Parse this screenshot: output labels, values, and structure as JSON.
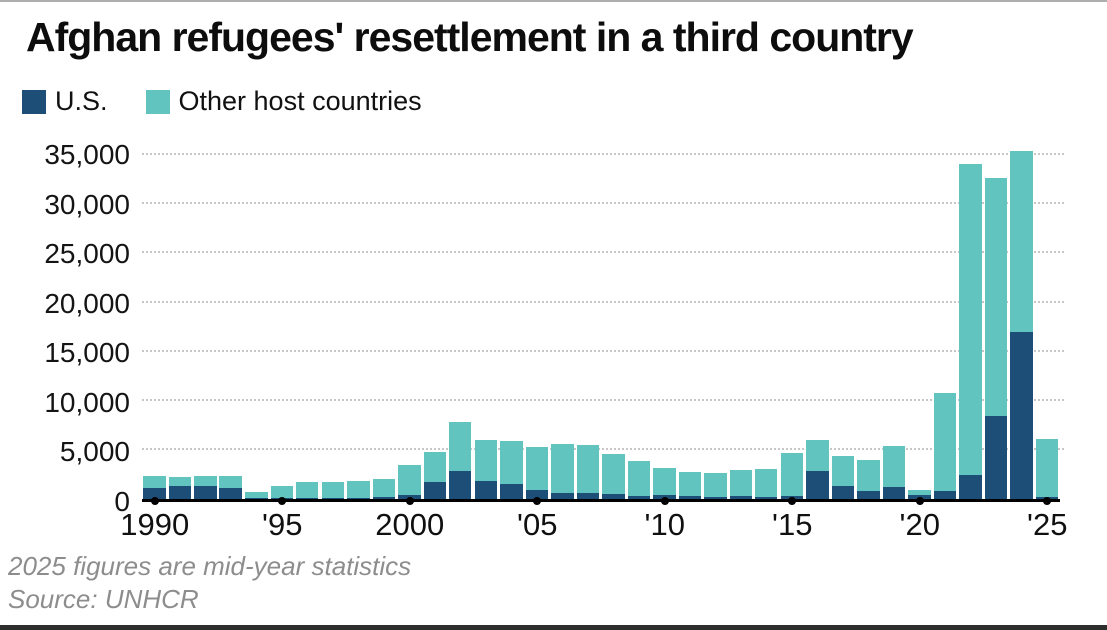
{
  "title": "Afghan refugees' resettlement in a third country",
  "legend": [
    {
      "label": "U.S.",
      "color": "#1c4e78"
    },
    {
      "label": "Other host countries",
      "color": "#62c4be"
    }
  ],
  "footnote": "2025 figures are mid-year statistics",
  "source": "Source: UNHCR",
  "chart_data": {
    "type": "bar",
    "stacked": true,
    "title": "Afghan refugees' resettlement in a third country",
    "xlabel": "",
    "ylabel": "",
    "ylim": [
      0,
      35000
    ],
    "grid": "dotted-horizontal",
    "legend_position": "top-left",
    "years": [
      1990,
      1991,
      1992,
      1993,
      1994,
      1995,
      1996,
      1997,
      1998,
      1999,
      2000,
      2001,
      2002,
      2003,
      2004,
      2005,
      2006,
      2007,
      2008,
      2009,
      2010,
      2011,
      2012,
      2013,
      2014,
      2015,
      2016,
      2017,
      2018,
      2019,
      2020,
      2021,
      2022,
      2023,
      2024,
      2025
    ],
    "series": [
      {
        "name": "U.S.",
        "color": "#1c4e78",
        "values": [
          1100,
          1300,
          1300,
          1100,
          150,
          100,
          100,
          150,
          100,
          200,
          400,
          1700,
          2900,
          1800,
          1500,
          900,
          650,
          600,
          500,
          350,
          400,
          350,
          250,
          300,
          250,
          350,
          2900,
          1300,
          800,
          1200,
          400,
          850,
          2400,
          8400,
          17000,
          200
        ]
      },
      {
        "name": "Other host countries",
        "color": "#62c4be",
        "values": [
          1200,
          900,
          1000,
          1200,
          550,
          1200,
          1600,
          1550,
          1700,
          1800,
          3100,
          3100,
          4900,
          4200,
          4400,
          4400,
          4950,
          4900,
          4100,
          3550,
          2800,
          2350,
          2350,
          2700,
          2850,
          4350,
          3100,
          3100,
          3200,
          4200,
          500,
          9950,
          31700,
          24300,
          18400,
          5900
        ]
      }
    ],
    "yticks": [
      {
        "value": 0,
        "label": "0"
      },
      {
        "value": 5000,
        "label": "5,000"
      },
      {
        "value": 10000,
        "label": "10,000"
      },
      {
        "value": 15000,
        "label": "15,000"
      },
      {
        "value": 20000,
        "label": "20,000"
      },
      {
        "value": 25000,
        "label": "25,000"
      },
      {
        "value": 30000,
        "label": "30,000"
      },
      {
        "value": 35000,
        "label": "35,000"
      }
    ],
    "xticks": [
      {
        "year": 1990,
        "label": "1990"
      },
      {
        "year": 1995,
        "label": "'95"
      },
      {
        "year": 2000,
        "label": "2000"
      },
      {
        "year": 2005,
        "label": "'05"
      },
      {
        "year": 2010,
        "label": "'10"
      },
      {
        "year": 2015,
        "label": "'15"
      },
      {
        "year": 2020,
        "label": "'20"
      },
      {
        "year": 2025,
        "label": "'25"
      }
    ]
  }
}
